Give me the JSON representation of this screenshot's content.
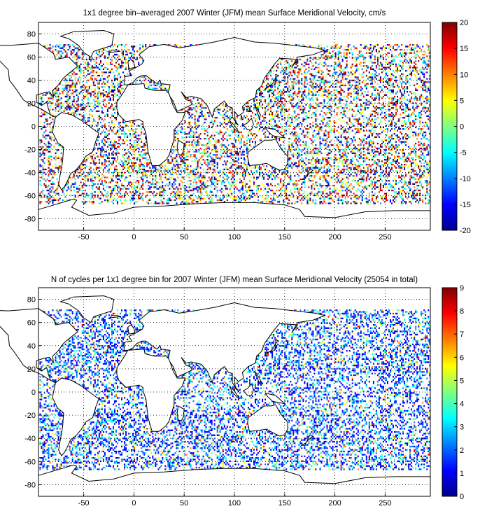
{
  "chart_data": [
    {
      "type": "heatmap",
      "title": "1x1 degree bin–averaged 2007 Winter (JFM) mean Surface Meridional Velocity, cm/s",
      "xlabel": "",
      "ylabel": "",
      "xlim": [
        -95,
        295
      ],
      "ylim": [
        -90,
        90
      ],
      "xticks": [
        -50,
        0,
        50,
        100,
        150,
        200,
        250
      ],
      "yticks": [
        -80,
        -60,
        -40,
        -20,
        0,
        20,
        40,
        60,
        80
      ],
      "grid": "dotted",
      "colorbar": {
        "min": -20,
        "max": 20,
        "ticks": [
          -20,
          -15,
          -10,
          -5,
          0,
          5,
          10,
          15,
          20
        ],
        "colormap": "jet"
      },
      "colors": [
        "#00008f",
        "#0000ff",
        "#0080ff",
        "#00ffff",
        "#80ff80",
        "#ffff00",
        "#ff8000",
        "#ff0000",
        "#800000"
      ]
    },
    {
      "type": "heatmap",
      "title": "N of cycles per 1x1 degree bin for 2007 Winter (JFM) mean Surface Meridional Velocity (25054 in total)",
      "xlabel": "",
      "ylabel": "",
      "xlim": [
        -95,
        295
      ],
      "ylim": [
        -90,
        90
      ],
      "xticks": [
        -50,
        0,
        50,
        100,
        150,
        200,
        250
      ],
      "yticks": [
        -80,
        -60,
        -40,
        -20,
        0,
        20,
        40,
        60,
        80
      ],
      "grid": "dotted",
      "colorbar": {
        "min": 0,
        "max": 9,
        "ticks": [
          0,
          1,
          2,
          3,
          4,
          5,
          6,
          7,
          8,
          9
        ],
        "colormap": "jet"
      },
      "colors": [
        "#00008f",
        "#0000ff",
        "#0080ff",
        "#00ffff",
        "#80ff80",
        "#ffff00",
        "#ff8000",
        "#ff0000",
        "#800000"
      ]
    }
  ]
}
